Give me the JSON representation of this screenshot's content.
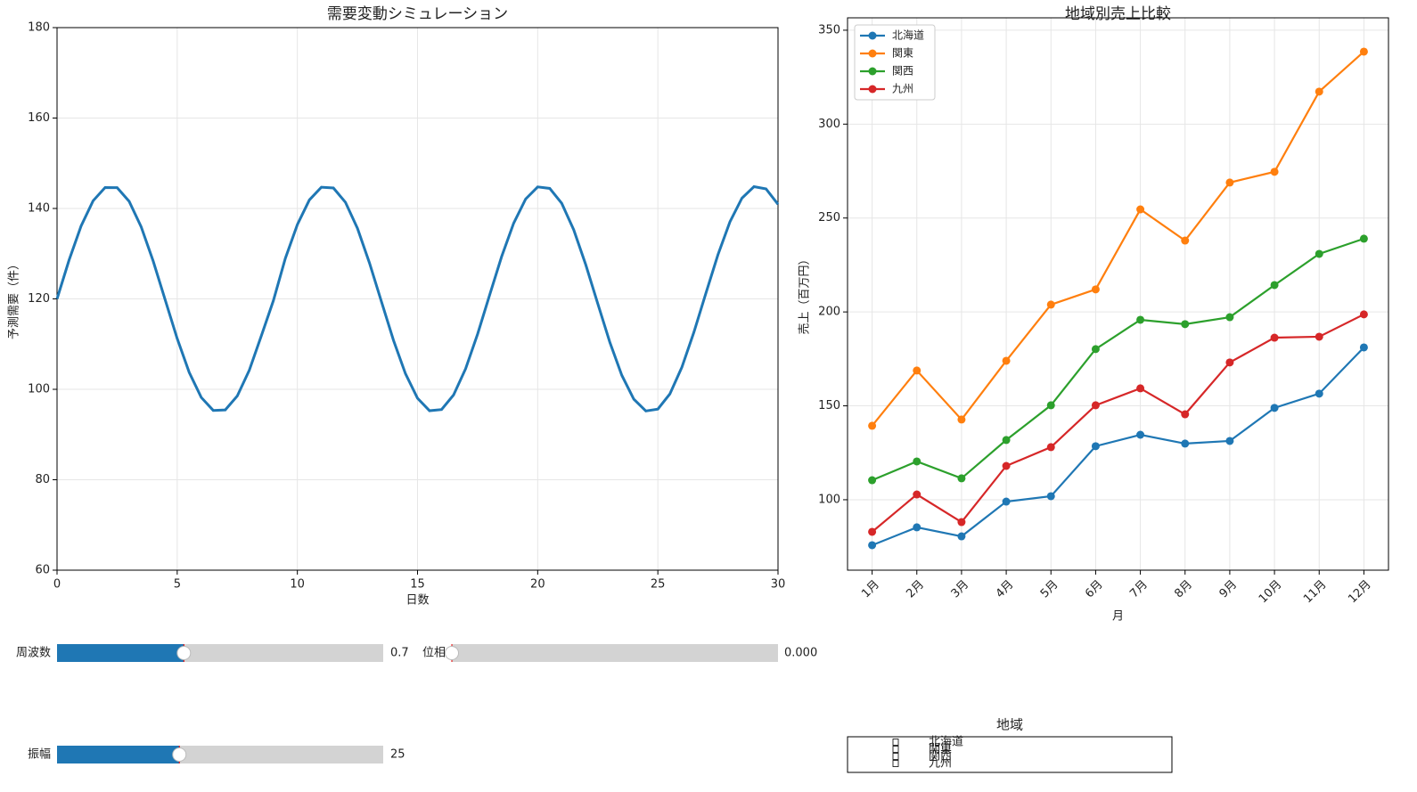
{
  "chart_data": [
    {
      "type": "line",
      "title": "需要変動シミュレーション",
      "xlabel": "日数",
      "ylabel": "予測需要（件）",
      "x": [
        0,
        0.5,
        1,
        1.5,
        2,
        2.5,
        3,
        3.5,
        4,
        4.5,
        5,
        5.5,
        6,
        6.5,
        7,
        7.5,
        8,
        8.5,
        9,
        9.5,
        10,
        10.5,
        11,
        11.5,
        12,
        12.5,
        13,
        13.5,
        14,
        14.5,
        15,
        15.5,
        16,
        16.5,
        17,
        17.5,
        18,
        18.5,
        19,
        19.5,
        20,
        20.5,
        21,
        21.5,
        22,
        22.5,
        23,
        23.5,
        24,
        24.5,
        25,
        25.5,
        26,
        26.5,
        27,
        27.5,
        28,
        28.5,
        29,
        29.5,
        30
      ],
      "series": [
        {
          "color": "#1f77b4",
          "values": [
            120,
            128.57,
            136.11,
            141.69,
            144.64,
            144.6,
            141.58,
            135.95,
            128.37,
            119.79,
            111.23,
            103.74,
            98.21,
            95.33,
            95.44,
            98.53,
            104.22,
            111.83,
            119.58,
            128.97,
            136.43,
            141.89,
            144.7,
            144.53,
            141.37,
            135.62,
            127.96,
            119.37,
            110.84,
            103.43,
            98.02,
            95.27,
            95.53,
            98.75,
            104.54,
            112.22,
            120.84,
            129.36,
            136.74,
            142.1,
            144.77,
            144.44,
            141.14,
            135.28,
            127.56,
            118.95,
            110.45,
            103.11,
            97.81,
            95.21,
            95.62,
            98.97,
            104.88,
            112.63,
            121.26,
            129.75,
            137.05,
            142.29,
            144.82,
            144.34,
            140.92
          ]
        }
      ],
      "xlim": [
        0,
        30
      ],
      "ylim": [
        60,
        180
      ],
      "xticks": [
        0,
        5,
        10,
        15,
        20,
        25,
        30
      ],
      "yticks": [
        60,
        80,
        100,
        120,
        140,
        160,
        180
      ],
      "grid": true
    },
    {
      "type": "line",
      "title": "地域別売上比較",
      "xlabel": "月",
      "ylabel": "売上（百万円）",
      "categories": [
        "1月",
        "2月",
        "3月",
        "4月",
        "5月",
        "6月",
        "7月",
        "8月",
        "9月",
        "10月",
        "11月",
        "12月"
      ],
      "series": [
        {
          "name": "北海道",
          "color": "#1f77b4",
          "values": [
            75.8,
            85.3,
            80.5,
            99,
            101.9,
            128.5,
            134.6,
            129.9,
            131.3,
            148.9,
            156.5,
            181.1
          ]
        },
        {
          "name": "関東",
          "color": "#ff7f0e",
          "values": [
            139.4,
            168.8,
            142.7,
            174,
            203.9,
            212,
            254.6,
            238,
            268.9,
            274.6,
            317.3,
            338.6
          ]
        },
        {
          "name": "関西",
          "color": "#2ca02c",
          "values": [
            110.4,
            120.4,
            111.4,
            131.8,
            150.3,
            180.2,
            195.8,
            193.5,
            197.2,
            214.3,
            230.9,
            239
          ]
        },
        {
          "name": "九州",
          "color": "#d62728",
          "values": [
            82.9,
            102.8,
            88.1,
            118,
            128,
            150.3,
            159.3,
            145.5,
            173.1,
            186.3,
            186.8,
            198.7
          ]
        }
      ],
      "markers": true,
      "ylim": [
        62.5,
        356.6
      ],
      "yticks": [
        100,
        150,
        200,
        250,
        300,
        350
      ],
      "grid": true,
      "legend": "upper left"
    }
  ],
  "controls": {
    "sliders": [
      {
        "label": "周波数",
        "value": 0.7,
        "min": 0,
        "max": 1.8,
        "color": "#1f77b4"
      },
      {
        "label": "位相",
        "value": 0,
        "value_label": "0.000",
        "min": 0,
        "max": 6.283,
        "color": "#1f77b4"
      },
      {
        "label": "振幅",
        "value": 25,
        "min": 10,
        "max": 50,
        "color": "#1f77b4"
      }
    ],
    "checks": {
      "title": "地域",
      "labels": [
        "北海道",
        "関東",
        "関西",
        "九州"
      ]
    }
  }
}
